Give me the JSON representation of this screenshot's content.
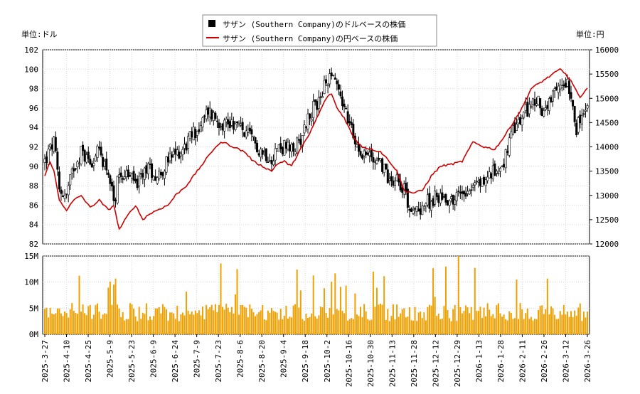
{
  "chart_data": {
    "type": "candlestick",
    "legend": [
      {
        "name": "サザン (Southern Company)のドルベースの株価",
        "marker": "square",
        "color": "#000000"
      },
      {
        "name": "サザン (Southern Company)の円ベースの株価",
        "marker": "line",
        "color": "#cc0000"
      }
    ],
    "left_unit_label": "単位:ドル",
    "right_unit_label": "単位:円",
    "price_axis_left": {
      "min": 82,
      "max": 102,
      "ticks": [
        82,
        84,
        86,
        88,
        90,
        92,
        94,
        96,
        98,
        100,
        102
      ]
    },
    "price_axis_right": {
      "min": 12000,
      "max": 16000,
      "ticks": [
        12000,
        12500,
        13000,
        13500,
        14000,
        14500,
        15000,
        15500,
        16000
      ]
    },
    "volume_axis": {
      "min": 0,
      "max": 15000000,
      "tick_labels": [
        "0M",
        "5M",
        "10M",
        "15M"
      ],
      "tick_values": [
        0,
        5000000,
        10000000,
        15000000
      ]
    },
    "x_tick_labels": [
      "2025-3-27",
      "2025-4-10",
      "2025-4-25",
      "2025-5-9",
      "2025-5-23",
      "2025-6-9",
      "2025-6-24",
      "2025-7-9",
      "2025-7-23",
      "2025-8-6",
      "2025-8-20",
      "2025-9-4",
      "2025-9-18",
      "2025-10-2",
      "2025-10-16",
      "2025-10-30",
      "2025-11-13",
      "2025-11-28",
      "2025-12-12",
      "2025-12-29",
      "2026-1-13",
      "2026-1-28",
      "2026-2-11",
      "2026-2-26",
      "2026-3-12",
      "2026-3-26"
    ],
    "usd_close_anchors": [
      [
        0,
        90.5
      ],
      [
        5,
        92.5
      ],
      [
        8,
        87.5
      ],
      [
        12,
        87.0
      ],
      [
        16,
        90.0
      ],
      [
        20,
        91.5
      ],
      [
        25,
        90.5
      ],
      [
        30,
        91.5
      ],
      [
        35,
        89.5
      ],
      [
        38,
        86.0
      ],
      [
        41,
        89.5
      ],
      [
        46,
        89.0
      ],
      [
        52,
        88.2
      ],
      [
        56,
        90.0
      ],
      [
        62,
        89.0
      ],
      [
        68,
        90.5
      ],
      [
        72,
        91.2
      ],
      [
        77,
        92.0
      ],
      [
        82,
        93.5
      ],
      [
        86,
        94.0
      ],
      [
        90,
        95.8
      ],
      [
        94,
        95.0
      ],
      [
        98,
        94.5
      ],
      [
        104,
        94.5
      ],
      [
        110,
        93.5
      ],
      [
        115,
        92.5
      ],
      [
        120,
        91.5
      ],
      [
        125,
        91.0
      ],
      [
        128,
        91.8
      ],
      [
        132,
        92.0
      ],
      [
        136,
        91.5
      ],
      [
        140,
        92.5
      ],
      [
        145,
        95.0
      ],
      [
        150,
        96.5
      ],
      [
        155,
        98.5
      ],
      [
        158,
        100.0
      ],
      [
        161,
        98.5
      ],
      [
        166,
        95.5
      ],
      [
        170,
        93.0
      ],
      [
        175,
        91.5
      ],
      [
        180,
        91.0
      ],
      [
        185,
        90.5
      ],
      [
        190,
        88.5
      ],
      [
        194,
        89.0
      ],
      [
        197,
        88.0
      ],
      [
        203,
        85.0
      ],
      [
        208,
        86.0
      ],
      [
        213,
        86.5
      ],
      [
        218,
        87.0
      ],
      [
        225,
        86.5
      ],
      [
        230,
        87.5
      ],
      [
        236,
        88.0
      ],
      [
        242,
        88.5
      ],
      [
        248,
        89.5
      ],
      [
        253,
        90.5
      ],
      [
        258,
        93.5
      ],
      [
        263,
        95.0
      ],
      [
        268,
        96.5
      ],
      [
        272,
        96.5
      ],
      [
        276,
        95.5
      ],
      [
        280,
        97.0
      ],
      [
        285,
        98.5
      ],
      [
        288,
        99.0
      ],
      [
        291,
        96.5
      ],
      [
        293,
        94.0
      ],
      [
        296,
        95.0
      ],
      [
        299,
        96.0
      ]
    ],
    "jpy_anchors": [
      [
        0,
        13400
      ],
      [
        3,
        13700
      ],
      [
        5,
        13500
      ],
      [
        8,
        12900
      ],
      [
        12,
        12700
      ],
      [
        16,
        12900
      ],
      [
        20,
        13000
      ],
      [
        25,
        12750
      ],
      [
        30,
        12900
      ],
      [
        35,
        12700
      ],
      [
        38,
        12800
      ],
      [
        41,
        12300
      ],
      [
        46,
        12600
      ],
      [
        50,
        12800
      ],
      [
        54,
        12500
      ],
      [
        57,
        12600
      ],
      [
        62,
        12700
      ],
      [
        68,
        12800
      ],
      [
        72,
        13000
      ],
      [
        78,
        13200
      ],
      [
        82,
        13400
      ],
      [
        86,
        13600
      ],
      [
        90,
        13800
      ],
      [
        94,
        14000
      ],
      [
        98,
        14100
      ],
      [
        104,
        14000
      ],
      [
        110,
        13900
      ],
      [
        115,
        13700
      ],
      [
        120,
        13600
      ],
      [
        125,
        13500
      ],
      [
        128,
        13650
      ],
      [
        132,
        13700
      ],
      [
        136,
        13600
      ],
      [
        140,
        13900
      ],
      [
        145,
        14200
      ],
      [
        150,
        14600
      ],
      [
        155,
        15000
      ],
      [
        158,
        15100
      ],
      [
        161,
        14800
      ],
      [
        165,
        14600
      ],
      [
        170,
        14200
      ],
      [
        175,
        14000
      ],
      [
        180,
        13950
      ],
      [
        185,
        13900
      ],
      [
        190,
        13700
      ],
      [
        194,
        13500
      ],
      [
        198,
        13100
      ],
      [
        203,
        13050
      ],
      [
        208,
        13100
      ],
      [
        213,
        13400
      ],
      [
        218,
        13600
      ],
      [
        225,
        13650
      ],
      [
        230,
        13700
      ],
      [
        236,
        14100
      ],
      [
        242,
        14000
      ],
      [
        248,
        13950
      ],
      [
        253,
        14200
      ],
      [
        258,
        14500
      ],
      [
        263,
        14800
      ],
      [
        268,
        15200
      ],
      [
        272,
        15300
      ],
      [
        276,
        15400
      ],
      [
        280,
        15500
      ],
      [
        284,
        15600
      ],
      [
        287,
        15500
      ],
      [
        291,
        15300
      ],
      [
        295,
        15000
      ],
      [
        299,
        15200
      ]
    ]
  }
}
